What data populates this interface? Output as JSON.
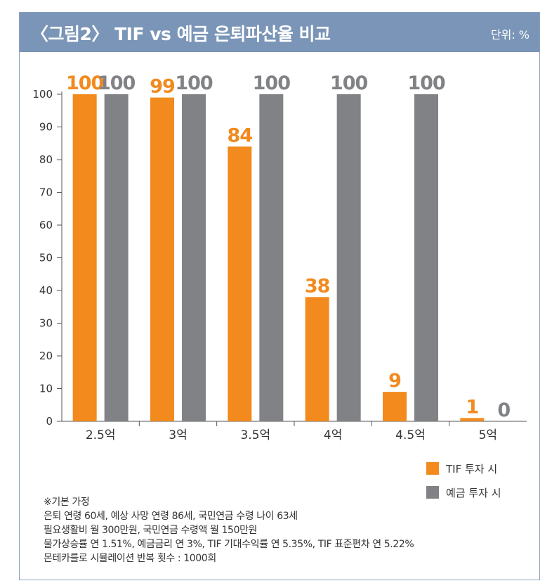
{
  "header": {
    "title": "〈그림2〉 TIF vs 예금 은퇴파산율 비교",
    "unit": "단위: %"
  },
  "colors": {
    "header_bg": "#7a95b7",
    "tif": "#f28a1e",
    "deposit": "#808285"
  },
  "chart_data": {
    "type": "bar",
    "categories": [
      "2.5억",
      "3억",
      "3.5억",
      "4억",
      "4.5억",
      "5억"
    ],
    "series": [
      {
        "name": "TIF 투자 시",
        "values": [
          100,
          99,
          84,
          38,
          9,
          1
        ],
        "color": "#f28a1e"
      },
      {
        "name": "예금 투자 시",
        "values": [
          100,
          100,
          100,
          100,
          100,
          0
        ],
        "color": "#808285"
      }
    ],
    "data_labels": [
      [
        "100",
        "99",
        "84",
        "38",
        "9",
        "1"
      ],
      [
        "100",
        "100",
        "100",
        "100",
        "100",
        "0"
      ]
    ],
    "ylim": [
      0,
      100
    ],
    "yticks": [
      0,
      10,
      20,
      30,
      40,
      50,
      60,
      70,
      80,
      90,
      100
    ],
    "grid": false,
    "legend": "bottom-right"
  },
  "notes": {
    "heading": "※기본 가정",
    "lines": [
      "은퇴 연령 60세, 예상 사망 연령 86세, 국민연금 수령 나이 63세",
      "필요생활비 월 300만원, 국민연금 수령액 월 150만원",
      "물가상승률 연 1.51%, 예금금리 연 3%, TIF 기대수익률 연 5.35%, TIF 표준편차 연 5.22%",
      "몬테카를로 시뮬레이션 반복 횟수 : 1000회"
    ]
  }
}
